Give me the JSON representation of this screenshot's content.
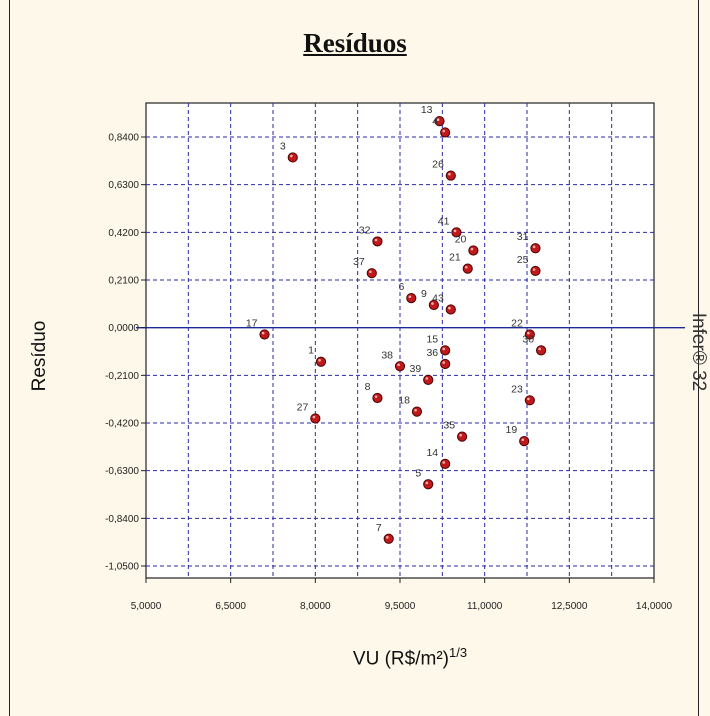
{
  "chart_data": {
    "type": "scatter",
    "title": "Resíduos",
    "xlabel": "VU (R$/m²)",
    "xlabel_exponent": "1/3",
    "ylabel": "Resíduo",
    "right_label": "Infer® 32",
    "xlim": [
      5.0,
      14.0
    ],
    "ylim": [
      -1.05,
      0.84
    ],
    "x_ticks": [
      "5,0000",
      "6,5000",
      "8,0000",
      "9,5000",
      "11,0000",
      "12,5000",
      "14,0000"
    ],
    "x_tick_values": [
      5.0,
      6.5,
      8.0,
      9.5,
      11.0,
      12.5,
      14.0
    ],
    "y_ticks": [
      "0,8400",
      "0,6300",
      "0,4200",
      "0,2100",
      "0,0000",
      "-0,2100",
      "-0,4200",
      "-0,6300",
      "-0,8400",
      "-1,0500"
    ],
    "y_tick_values": [
      0.84,
      0.63,
      0.42,
      0.21,
      0.0,
      -0.21,
      -0.42,
      -0.63,
      -0.84,
      -1.05
    ],
    "grid": true,
    "zero_line": true,
    "colors": {
      "marker": "#c0181b",
      "grid": "#2a2aa8",
      "zero_line": "#1a2a9a",
      "background": "#fdf8e9"
    },
    "points": [
      {
        "label": "13",
        "x": 10.2,
        "y": 0.91
      },
      {
        "label": "4",
        "x": 10.3,
        "y": 0.86
      },
      {
        "label": "3",
        "x": 7.6,
        "y": 0.75
      },
      {
        "label": "26",
        "x": 10.4,
        "y": 0.67
      },
      {
        "label": "41",
        "x": 10.5,
        "y": 0.42
      },
      {
        "label": "20",
        "x": 10.8,
        "y": 0.34
      },
      {
        "label": "31",
        "x": 11.9,
        "y": 0.35
      },
      {
        "label": "32",
        "x": 9.1,
        "y": 0.38
      },
      {
        "label": "21",
        "x": 10.7,
        "y": 0.26
      },
      {
        "label": "25",
        "x": 11.9,
        "y": 0.25
      },
      {
        "label": "37",
        "x": 9.0,
        "y": 0.24
      },
      {
        "label": "6",
        "x": 9.7,
        "y": 0.13
      },
      {
        "label": "9",
        "x": 10.1,
        "y": 0.1
      },
      {
        "label": "43",
        "x": 10.4,
        "y": 0.08
      },
      {
        "label": "17",
        "x": 7.1,
        "y": -0.03
      },
      {
        "label": "22",
        "x": 11.8,
        "y": -0.03
      },
      {
        "label": "30",
        "x": 12.0,
        "y": -0.1
      },
      {
        "label": "15",
        "x": 10.3,
        "y": -0.1
      },
      {
        "label": "1",
        "x": 8.1,
        "y": -0.15
      },
      {
        "label": "38",
        "x": 9.5,
        "y": -0.17
      },
      {
        "label": "36",
        "x": 10.3,
        "y": -0.16
      },
      {
        "label": "39",
        "x": 10.0,
        "y": -0.23
      },
      {
        "label": "8",
        "x": 9.1,
        "y": -0.31
      },
      {
        "label": "23",
        "x": 11.8,
        "y": -0.32
      },
      {
        "label": "18",
        "x": 9.8,
        "y": -0.37
      },
      {
        "label": "27",
        "x": 8.0,
        "y": -0.4
      },
      {
        "label": "35",
        "x": 10.6,
        "y": -0.48
      },
      {
        "label": "19",
        "x": 11.7,
        "y": -0.5
      },
      {
        "label": "14",
        "x": 10.3,
        "y": -0.6
      },
      {
        "label": "5",
        "x": 10.0,
        "y": -0.69
      },
      {
        "label": "7",
        "x": 9.3,
        "y": -0.93
      }
    ]
  }
}
